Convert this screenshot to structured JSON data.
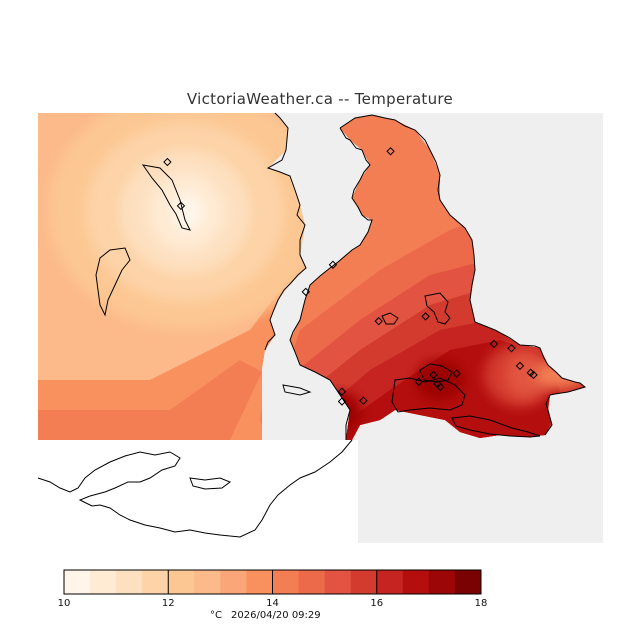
{
  "title": "VictoriaWeather.ca -- Temperature",
  "colors": {
    "background": "#ffffff",
    "sea": "#efefef",
    "coast": "#000000"
  },
  "legend": {
    "unit": "°C",
    "timestamp": "2026/04/20 09:29",
    "min": 10,
    "max": 18,
    "tick_labels": [
      "10",
      "12",
      "14",
      "16",
      "18"
    ],
    "bands": [
      "#fff5e9",
      "#ffead3",
      "#fde0c0",
      "#fdd3a7",
      "#fcc792",
      "#fcb98a",
      "#faa679",
      "#f9915f",
      "#f37e53",
      "#ec6a4a",
      "#e25441",
      "#d33b2f",
      "#c62420",
      "#b40e0e",
      "#9c0606",
      "#7b0202"
    ]
  },
  "stations": [
    {
      "id": "s01",
      "lon_frac": 0.229,
      "lat_frac": 0.114
    },
    {
      "id": "s02",
      "lon_frac": 0.253,
      "lat_frac": 0.216
    },
    {
      "id": "s03",
      "lon_frac": 0.624,
      "lat_frac": 0.089
    },
    {
      "id": "s04",
      "lon_frac": 0.522,
      "lat_frac": 0.353
    },
    {
      "id": "s05",
      "lon_frac": 0.474,
      "lat_frac": 0.416
    },
    {
      "id": "s06",
      "lon_frac": 0.603,
      "lat_frac": 0.484
    },
    {
      "id": "s07",
      "lon_frac": 0.686,
      "lat_frac": 0.473
    },
    {
      "id": "s08",
      "lon_frac": 0.807,
      "lat_frac": 0.537
    },
    {
      "id": "s09",
      "lon_frac": 0.838,
      "lat_frac": 0.547
    },
    {
      "id": "s10",
      "lon_frac": 0.853,
      "lat_frac": 0.588
    },
    {
      "id": "s11",
      "lon_frac": 0.872,
      "lat_frac": 0.604
    },
    {
      "id": "s12",
      "lon_frac": 0.877,
      "lat_frac": 0.609
    },
    {
      "id": "s13",
      "lon_frac": 0.7,
      "lat_frac": 0.609
    },
    {
      "id": "s14",
      "lon_frac": 0.741,
      "lat_frac": 0.606
    },
    {
      "id": "s15",
      "lon_frac": 0.674,
      "lat_frac": 0.625
    },
    {
      "id": "s16",
      "lon_frac": 0.712,
      "lat_frac": 0.637
    },
    {
      "id": "s17",
      "lon_frac": 0.707,
      "lat_frac": 0.63
    },
    {
      "id": "s18",
      "lon_frac": 0.538,
      "lat_frac": 0.648
    },
    {
      "id": "s19",
      "lon_frac": 0.538,
      "lat_frac": 0.671
    },
    {
      "id": "s20",
      "lon_frac": 0.576,
      "lat_frac": 0.669
    }
  ]
}
